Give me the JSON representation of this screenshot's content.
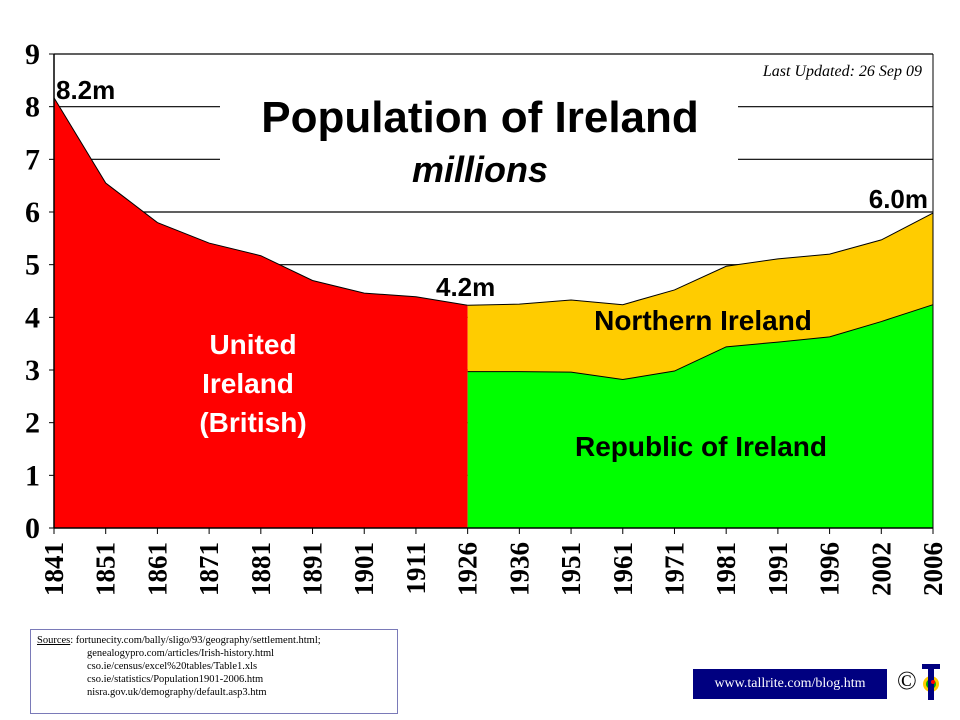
{
  "chart_data": {
    "type": "area",
    "title": "Population of Ireland",
    "subtitle": "millions",
    "last_updated": "Last Updated: 26 Sep 09",
    "categories": [
      "1841",
      "1851",
      "1861",
      "1871",
      "1881",
      "1891",
      "1901",
      "1911",
      "1926",
      "1936",
      "1951",
      "1961",
      "1971",
      "1981",
      "1991",
      "1996",
      "2002",
      "2006"
    ],
    "ylim": [
      0,
      9
    ],
    "yticks": [
      "0",
      "1",
      "2",
      "3",
      "4",
      "5",
      "6",
      "7",
      "8",
      "9"
    ],
    "grid": true,
    "series": [
      {
        "name": "United Ireland (British)",
        "color": "#ff0000",
        "values": [
          8.17,
          6.55,
          5.8,
          5.41,
          5.17,
          4.7,
          4.46,
          4.39,
          4.23,
          null,
          null,
          null,
          null,
          null,
          null,
          null,
          null,
          null
        ]
      },
      {
        "name": "Republic of Ireland",
        "color": "#00ff00",
        "values": [
          null,
          null,
          null,
          null,
          null,
          null,
          null,
          null,
          2.97,
          2.97,
          2.96,
          2.82,
          2.98,
          3.44,
          3.53,
          3.63,
          3.92,
          4.24
        ]
      },
      {
        "name": "Northern Ireland",
        "color": "#ffcc00",
        "values": [
          null,
          null,
          null,
          null,
          null,
          null,
          null,
          null,
          1.26,
          1.28,
          1.37,
          1.42,
          1.54,
          1.53,
          1.58,
          1.57,
          1.55,
          1.74
        ]
      }
    ],
    "annotations": {
      "start": "8.2m",
      "partition": "4.2m",
      "end": "6.0m"
    },
    "region_labels": {
      "united": [
        "United",
        "Ireland",
        "(British)"
      ],
      "northern": "Northern Ireland",
      "republic": "Republic of Ireland"
    }
  },
  "sources": {
    "label": "Sources",
    "lines": [
      "fortunecity.com/bally/sligo/93/geography/settlement.html;",
      "genealogypro.com/articles/Irish-history.html",
      "cso.ie/census/excel%20tables/Table1.xls",
      "cso.ie/statistics/Population1901-2006.htm",
      "nisra.gov.uk/demography/default.asp3.htm"
    ]
  },
  "footer": {
    "blog_link": "www.tallrite.com/blog.htm",
    "copyright": "©",
    "logo_letter": "T"
  }
}
